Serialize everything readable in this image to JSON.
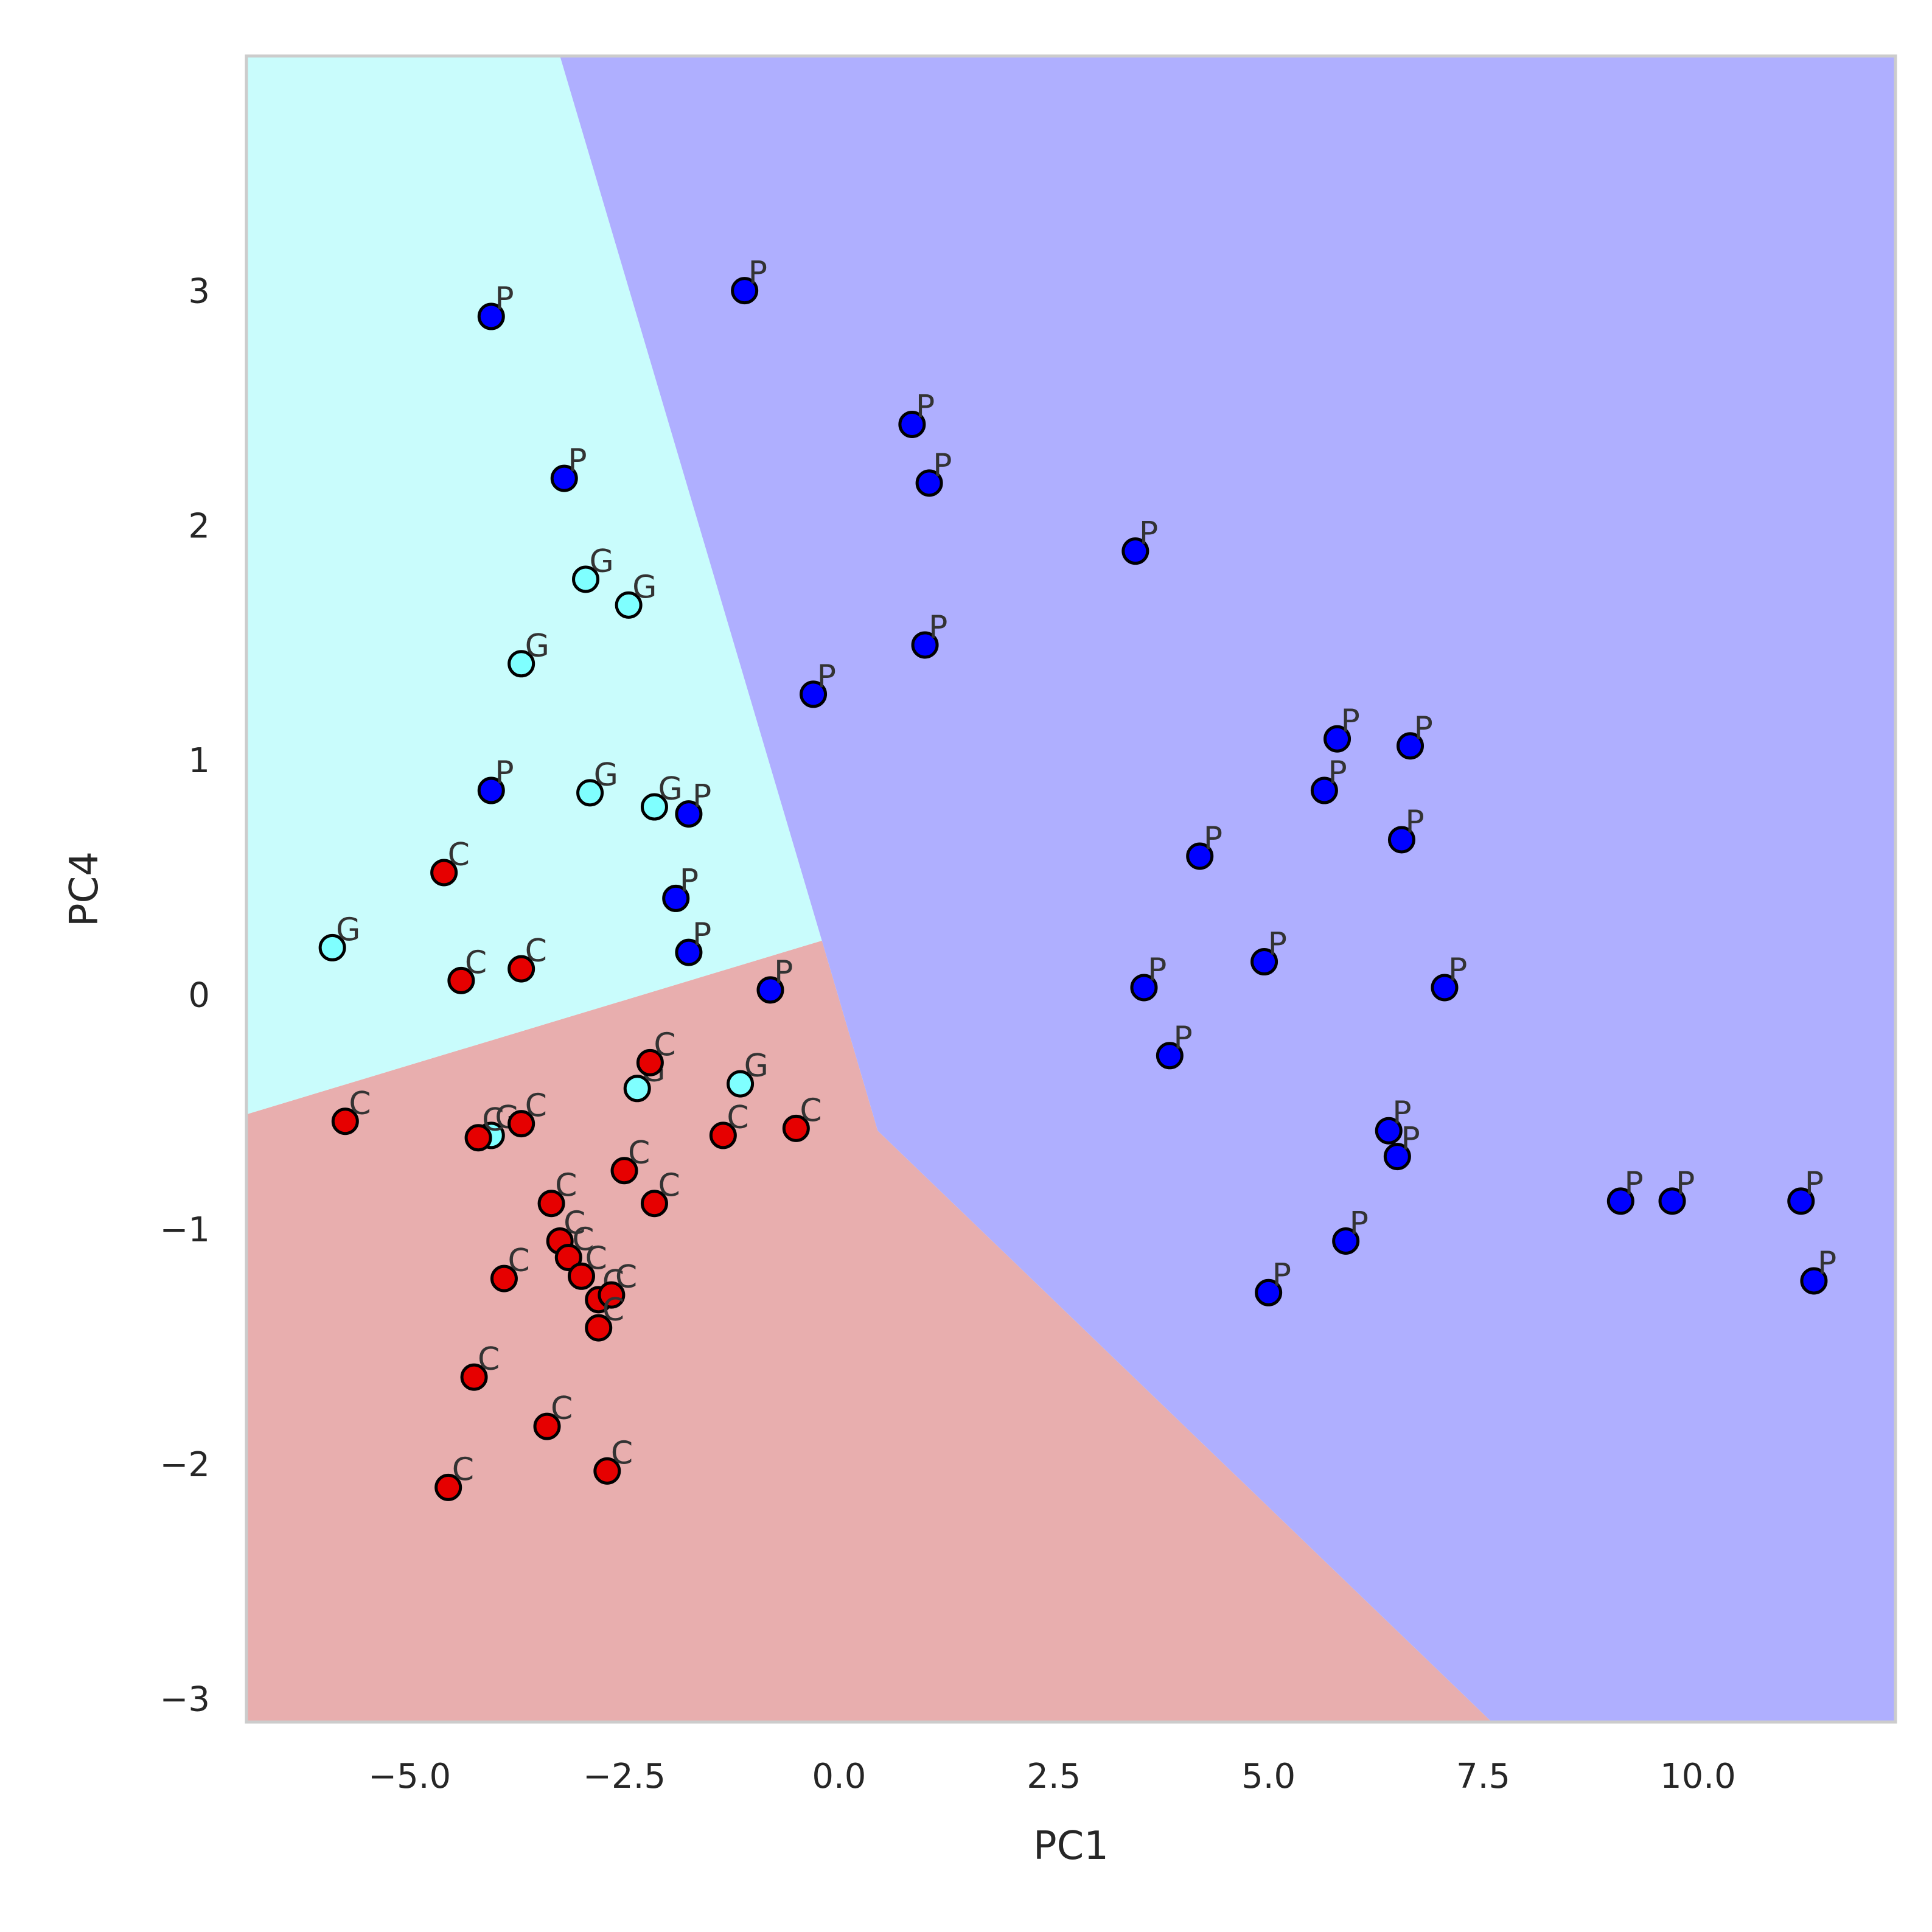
{
  "chart_data": {
    "type": "scatter",
    "title": "",
    "xlabel": "PC1",
    "ylabel": "PC4",
    "xlim": [
      -6.9,
      12.3
    ],
    "ylim": [
      -3.1,
      4.0
    ],
    "xticks": [
      {
        "value": -5.0,
        "label": "−5.0"
      },
      {
        "value": -2.5,
        "label": "−2.5"
      },
      {
        "value": 0.0,
        "label": "0.0"
      },
      {
        "value": 2.5,
        "label": "2.5"
      },
      {
        "value": 5.0,
        "label": "5.0"
      },
      {
        "value": 7.5,
        "label": "7.5"
      },
      {
        "value": 10.0,
        "label": "10.0"
      }
    ],
    "yticks": [
      {
        "value": -3,
        "label": "−3"
      },
      {
        "value": -2,
        "label": "−2"
      },
      {
        "value": -1,
        "label": "−1"
      },
      {
        "value": 0,
        "label": "0"
      },
      {
        "value": 1,
        "label": "1"
      },
      {
        "value": 2,
        "label": "2"
      },
      {
        "value": 3,
        "label": "3"
      }
    ],
    "grid": false,
    "legend": "none",
    "regions": [
      {
        "class": "C",
        "color": "#e8aeae",
        "polygon": [
          [
            -6.9,
            -3.1
          ],
          [
            7.6,
            -3.1
          ],
          [
            0.45,
            -0.58
          ],
          [
            -0.2,
            0.23
          ],
          [
            -6.9,
            -0.51
          ]
        ]
      },
      {
        "class": "G",
        "color": "#c9fcfc",
        "polygon": [
          [
            -6.9,
            -0.51
          ],
          [
            -0.2,
            0.23
          ],
          [
            -3.25,
            4.0
          ],
          [
            -6.9,
            4.0
          ]
        ]
      },
      {
        "class": "P",
        "color": "#afafff",
        "polygon": [
          [
            -3.25,
            4.0
          ],
          [
            12.3,
            4.0
          ],
          [
            12.3,
            -3.1
          ],
          [
            7.6,
            -3.1
          ],
          [
            0.45,
            -0.58
          ],
          [
            -0.2,
            0.23
          ]
        ]
      }
    ],
    "series": [
      {
        "label": "P",
        "color": "#0000ff",
        "points": [
          [
            -4.05,
            2.89
          ],
          [
            -1.1,
            3.0
          ],
          [
            -3.2,
            2.2
          ],
          [
            0.85,
            2.43
          ],
          [
            1.05,
            2.18
          ],
          [
            3.45,
            1.89
          ],
          [
            1.0,
            1.49
          ],
          [
            -0.3,
            1.28
          ],
          [
            5.8,
            1.09
          ],
          [
            6.65,
            1.06
          ],
          [
            5.65,
            0.87
          ],
          [
            -4.05,
            0.87
          ],
          [
            -1.75,
            0.77
          ],
          [
            6.55,
            0.66
          ],
          [
            4.2,
            0.59
          ],
          [
            -1.9,
            0.41
          ],
          [
            -1.75,
            0.18
          ],
          [
            4.95,
            0.14
          ],
          [
            -0.8,
            0.02
          ],
          [
            3.55,
            0.03
          ],
          [
            7.05,
            0.03
          ],
          [
            3.85,
            -0.26
          ],
          [
            6.4,
            -0.58
          ],
          [
            6.5,
            -0.69
          ],
          [
            9.1,
            -0.88
          ],
          [
            9.7,
            -0.88
          ],
          [
            11.2,
            -0.88
          ],
          [
            5.9,
            -1.05
          ],
          [
            5.0,
            -1.27
          ],
          [
            11.35,
            -1.22
          ]
        ]
      },
      {
        "label": "G",
        "color": "#7fffff",
        "points": [
          [
            -2.95,
            1.77
          ],
          [
            -2.45,
            1.66
          ],
          [
            -3.7,
            1.41
          ],
          [
            -2.9,
            0.86
          ],
          [
            -2.15,
            0.8
          ],
          [
            -5.9,
            0.2
          ],
          [
            -2.35,
            -0.4
          ],
          [
            -1.15,
            -0.38
          ],
          [
            -4.05,
            -0.6
          ]
        ]
      },
      {
        "label": "C",
        "color": "#e60000",
        "points": [
          [
            -4.6,
            0.52
          ],
          [
            -4.4,
            0.06
          ],
          [
            -3.7,
            0.11
          ],
          [
            -2.2,
            -0.29
          ],
          [
            -5.75,
            -0.54
          ],
          [
            -4.2,
            -0.61
          ],
          [
            -3.7,
            -0.55
          ],
          [
            -1.35,
            -0.6
          ],
          [
            -0.5,
            -0.57
          ],
          [
            -2.5,
            -0.75
          ],
          [
            -3.35,
            -0.89
          ],
          [
            -2.15,
            -0.89
          ],
          [
            -3.25,
            -1.05
          ],
          [
            -3.15,
            -1.12
          ],
          [
            -3.0,
            -1.2
          ],
          [
            -3.9,
            -1.21
          ],
          [
            -2.8,
            -1.3
          ],
          [
            -2.65,
            -1.28
          ],
          [
            -2.8,
            -1.42
          ],
          [
            -4.25,
            -1.63
          ],
          [
            -3.4,
            -1.84
          ],
          [
            -4.55,
            -2.1
          ],
          [
            -2.7,
            -2.03
          ]
        ]
      }
    ]
  }
}
